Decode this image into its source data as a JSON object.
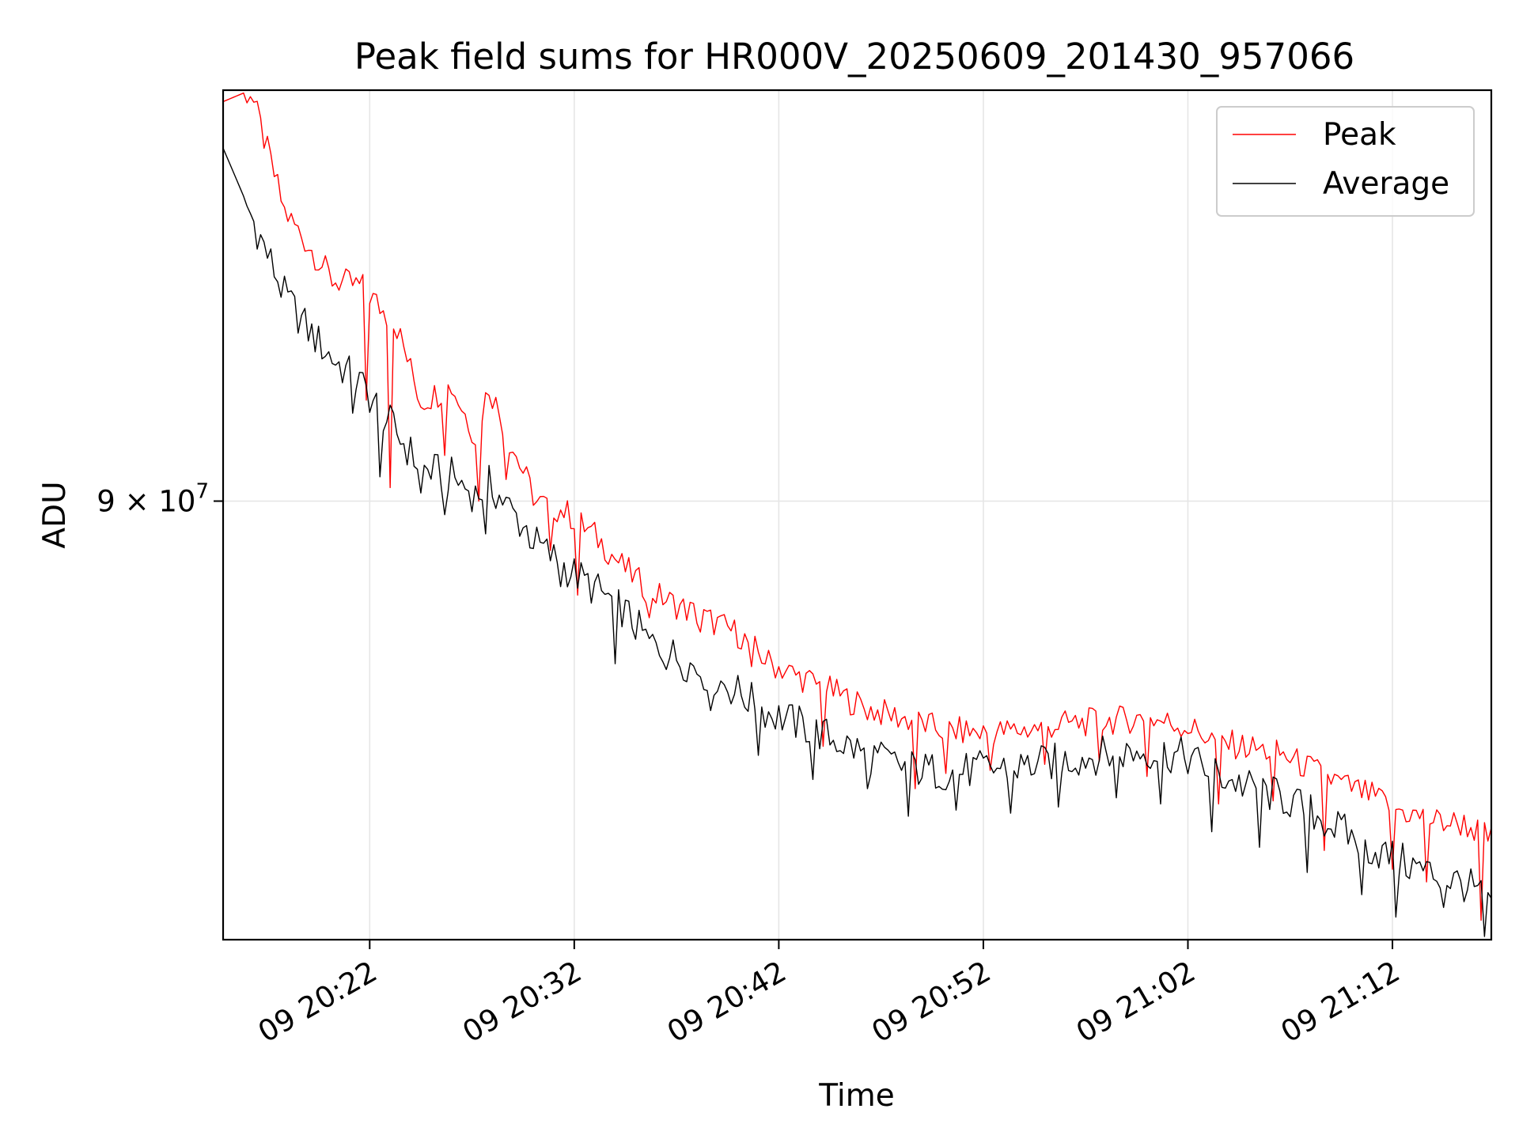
{
  "chart_data": {
    "type": "line",
    "title": "Peak field sums for HR000V_20250609_201430_957066",
    "xlabel": "Time",
    "ylabel": "ADU",
    "yscale": "log",
    "ylim": [
      75200000,
      106500000
    ],
    "xlim": [
      "2025-06-09T20:14:50",
      "2025-06-09T21:16:50"
    ],
    "xticks": [
      {
        "t": "2025-06-09T20:22:00",
        "label": "09 20:22"
      },
      {
        "t": "2025-06-09T20:32:00",
        "label": "09 20:32"
      },
      {
        "t": "2025-06-09T20:42:00",
        "label": "09 20:42"
      },
      {
        "t": "2025-06-09T20:52:00",
        "label": "09 20:52"
      },
      {
        "t": "2025-06-09T21:02:00",
        "label": "09 21:02"
      },
      {
        "t": "2025-06-09T21:12:00",
        "label": "09 21:12"
      }
    ],
    "yticks": [
      {
        "value": 90000000,
        "mantissa": "9",
        "times": "×",
        "base": "10",
        "exponent": "7"
      }
    ],
    "grid": true,
    "legend_position": "upper right",
    "series": [
      {
        "name": "Peak",
        "color": "#ff0000",
        "t": [
          "2025-06-09T20:14:50",
          "2025-06-09T20:16:10",
          "2025-06-09T20:17:50",
          "2025-06-09T20:19:00",
          "2025-06-09T20:20:10",
          "2025-06-09T20:21:40",
          "2025-06-09T20:23:20",
          "2025-06-09T20:24:30",
          "2025-06-09T20:26:00",
          "2025-06-09T20:27:10",
          "2025-06-09T20:27:50",
          "2025-06-09T20:28:50",
          "2025-06-09T20:30:10",
          "2025-06-09T20:31:30",
          "2025-06-09T20:33:00",
          "2025-06-09T20:34:20",
          "2025-06-09T20:35:40",
          "2025-06-09T20:37:00",
          "2025-06-09T20:38:30",
          "2025-06-09T20:40:00",
          "2025-06-09T20:41:30",
          "2025-06-09T20:43:00",
          "2025-06-09T20:44:40",
          "2025-06-09T20:46:20",
          "2025-06-09T20:48:00",
          "2025-06-09T20:50:00",
          "2025-06-09T20:52:00",
          "2025-06-09T20:54:00",
          "2025-06-09T20:56:00",
          "2025-06-09T20:58:00",
          "2025-06-09T21:00:00",
          "2025-06-09T21:02:00",
          "2025-06-09T21:03:30",
          "2025-06-09T21:05:00",
          "2025-06-09T21:06:30",
          "2025-06-09T21:08:00",
          "2025-06-09T21:09:30",
          "2025-06-09T21:11:00",
          "2025-06-09T21:12:30",
          "2025-06-09T21:14:00",
          "2025-06-09T21:15:30",
          "2025-06-09T21:16:50"
        ],
        "y": [
          106000000,
          106500000,
          101400000,
          100000000,
          98600000,
          98300000,
          96700000,
          93800000,
          94400000,
          92500000,
          94400000,
          92300000,
          90000000,
          89700000,
          88800000,
          87700000,
          86800000,
          86300000,
          85800000,
          85300000,
          84300000,
          83800000,
          83300000,
          82700000,
          82400000,
          82000000,
          81900000,
          82000000,
          82200000,
          82300000,
          82400000,
          82100000,
          81600000,
          81400000,
          81200000,
          80700000,
          80200000,
          79800000,
          79300000,
          79000000,
          78900000,
          78400000
        ],
        "dips": [
          {
            "t": "20:21:50",
            "y": 93800000
          },
          {
            "t": "20:23:00",
            "y": 90500000
          },
          {
            "t": "20:25:40",
            "y": 91700000
          },
          {
            "t": "20:27:20",
            "y": 90000000
          },
          {
            "t": "20:28:40",
            "y": 90800000
          },
          {
            "t": "20:30:50",
            "y": 88200000
          },
          {
            "t": "20:32:10",
            "y": 86600000
          },
          {
            "t": "20:35:40",
            "y": 85800000
          },
          {
            "t": "20:38:10",
            "y": 85300000
          },
          {
            "t": "20:40:40",
            "y": 84100000
          },
          {
            "t": "20:44:10",
            "y": 81400000
          },
          {
            "t": "20:48:40",
            "y": 80000000
          },
          {
            "t": "20:50:10",
            "y": 80500000
          },
          {
            "t": "20:52:20",
            "y": 80600000
          },
          {
            "t": "20:55:00",
            "y": 80800000
          },
          {
            "t": "20:57:40",
            "y": 80900000
          },
          {
            "t": "21:00:00",
            "y": 80400000
          },
          {
            "t": "21:03:30",
            "y": 79500000
          },
          {
            "t": "21:06:10",
            "y": 79600000
          },
          {
            "t": "21:08:40",
            "y": 78000000
          },
          {
            "t": "21:12:00",
            "y": 77400000
          },
          {
            "t": "21:13:40",
            "y": 77000000
          },
          {
            "t": "21:16:20",
            "y": 75800000
          }
        ]
      },
      {
        "name": "Average",
        "color": "#000000",
        "t": [
          "2025-06-09T20:14:50",
          "2025-06-09T20:16:10",
          "2025-06-09T20:17:50",
          "2025-06-09T20:19:00",
          "2025-06-09T20:20:10",
          "2025-06-09T20:21:40",
          "2025-06-09T20:23:20",
          "2025-06-09T20:24:30",
          "2025-06-09T20:26:00",
          "2025-06-09T20:27:10",
          "2025-06-09T20:27:50",
          "2025-06-09T20:28:50",
          "2025-06-09T20:30:10",
          "2025-06-09T20:31:30",
          "2025-06-09T20:33:00",
          "2025-06-09T20:34:20",
          "2025-06-09T20:35:40",
          "2025-06-09T20:37:00",
          "2025-06-09T20:38:30",
          "2025-06-09T20:40:00",
          "2025-06-09T20:41:30",
          "2025-06-09T20:43:00",
          "2025-06-09T20:44:40",
          "2025-06-09T20:46:20",
          "2025-06-09T20:48:00",
          "2025-06-09T20:50:00",
          "2025-06-09T20:52:00",
          "2025-06-09T20:54:00",
          "2025-06-09T20:56:00",
          "2025-06-09T20:58:00",
          "2025-06-09T21:00:00",
          "2025-06-09T21:02:00",
          "2025-06-09T21:03:30",
          "2025-06-09T21:05:00",
          "2025-06-09T21:06:30",
          "2025-06-09T21:08:00",
          "2025-06-09T21:09:30",
          "2025-06-09T21:11:00",
          "2025-06-09T21:12:30",
          "2025-06-09T21:14:00",
          "2025-06-09T21:15:30",
          "2025-06-09T21:16:50"
        ],
        "y": [
          104000000,
          101300000,
          98000000,
          96600000,
          95500000,
          94400000,
          92600000,
          91300000,
          91000000,
          90300000,
          90700000,
          89800000,
          88500000,
          87700000,
          86900000,
          86200000,
          85000000,
          84500000,
          83900000,
          83300000,
          82600000,
          82200000,
          81700000,
          81200000,
          80800000,
          80600000,
          80700000,
          80800000,
          81000000,
          81200000,
          81300000,
          81100000,
          80500000,
          80100000,
          79800000,
          79300000,
          78700000,
          78100000,
          77700000,
          77300000,
          77000000,
          76500000
        ],
        "dips": [
          {
            "t": "20:21:10",
            "y": 93300000
          },
          {
            "t": "20:22:30",
            "y": 90900000
          },
          {
            "t": "20:24:30",
            "y": 90300000
          },
          {
            "t": "20:25:40",
            "y": 89500000
          },
          {
            "t": "20:27:40",
            "y": 88800000
          },
          {
            "t": "20:29:40",
            "y": 89100000
          },
          {
            "t": "20:31:20",
            "y": 86900000
          },
          {
            "t": "20:34:00",
            "y": 84200000
          },
          {
            "t": "20:36:30",
            "y": 84000000
          },
          {
            "t": "20:38:40",
            "y": 82600000
          },
          {
            "t": "20:41:00",
            "y": 81100000
          },
          {
            "t": "20:43:40",
            "y": 80300000
          },
          {
            "t": "20:46:20",
            "y": 80000000
          },
          {
            "t": "20:48:20",
            "y": 79100000
          },
          {
            "t": "20:50:40",
            "y": 79300000
          },
          {
            "t": "20:53:20",
            "y": 79200000
          },
          {
            "t": "20:55:40",
            "y": 79400000
          },
          {
            "t": "20:58:30",
            "y": 79700000
          },
          {
            "t": "21:00:40",
            "y": 79500000
          },
          {
            "t": "21:03:10",
            "y": 78600000
          },
          {
            "t": "21:05:30",
            "y": 78100000
          },
          {
            "t": "21:07:50",
            "y": 77300000
          },
          {
            "t": "21:10:30",
            "y": 76600000
          },
          {
            "t": "21:12:10",
            "y": 75900000
          },
          {
            "t": "21:14:30",
            "y": 76200000
          },
          {
            "t": "21:16:30",
            "y": 75300000
          }
        ]
      }
    ]
  }
}
